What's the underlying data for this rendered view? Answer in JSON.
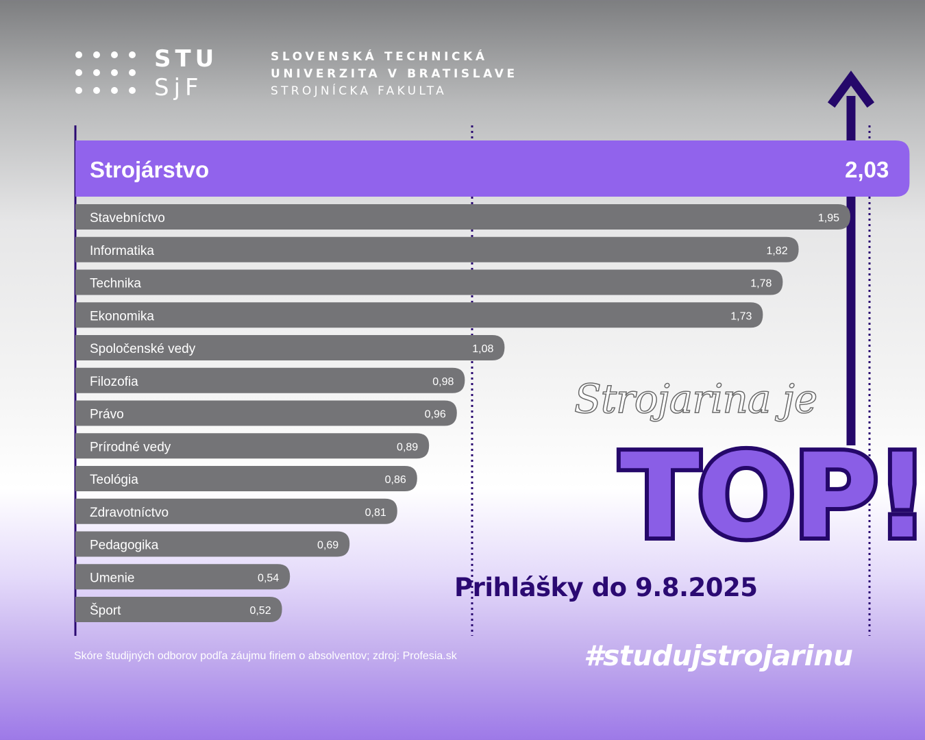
{
  "header": {
    "logo_line1": "STU",
    "logo_line2": "SjF",
    "university_line1": "SLOVENSKÁ TECHNICKÁ",
    "university_line2": "UNIVERZITA V BRATISLAVE",
    "university_line3": "STROJNÍCKA FAKULTA"
  },
  "chart_data": {
    "type": "bar",
    "orientation": "horizontal",
    "highlight_color": "#9163ec",
    "bar_color": "#747477",
    "categories": [
      "Strojárstvo",
      "Stavebníctvo",
      "Informatika",
      "Technika",
      "Ekonomika",
      "Spoločenské vedy",
      "Filozofia",
      "Právo",
      "Prírodné vedy",
      "Teológia",
      "Zdravotníctvo",
      "Pedagogika",
      "Umenie",
      "Šport"
    ],
    "values": [
      2.03,
      1.95,
      1.82,
      1.78,
      1.73,
      1.08,
      0.98,
      0.96,
      0.89,
      0.86,
      0.81,
      0.69,
      0.54,
      0.52
    ],
    "value_labels": [
      "2,03",
      "1,95",
      "1,82",
      "1,78",
      "1,73",
      "1,08",
      "0,98",
      "0,96",
      "0,89",
      "0,86",
      "0,81",
      "0,69",
      "0,54",
      "0,52"
    ],
    "xlim": [
      0,
      2.05
    ],
    "dotted_reference_lines": [
      1.0,
      2.0
    ],
    "arrow": "up"
  },
  "promo": {
    "script_line": "Strojarina je",
    "headline": "TOP!",
    "deadline": "Prihlášky do 9.8.2025",
    "hashtag": "#studujstrojarinu"
  },
  "footer": {
    "source_note": "Skóre študijných odborov podľa záujmu firiem o absolventov; zdroj: Profesia.sk"
  },
  "colors": {
    "deep_purple": "#25086a",
    "accent_purple": "#8a5ee6"
  }
}
